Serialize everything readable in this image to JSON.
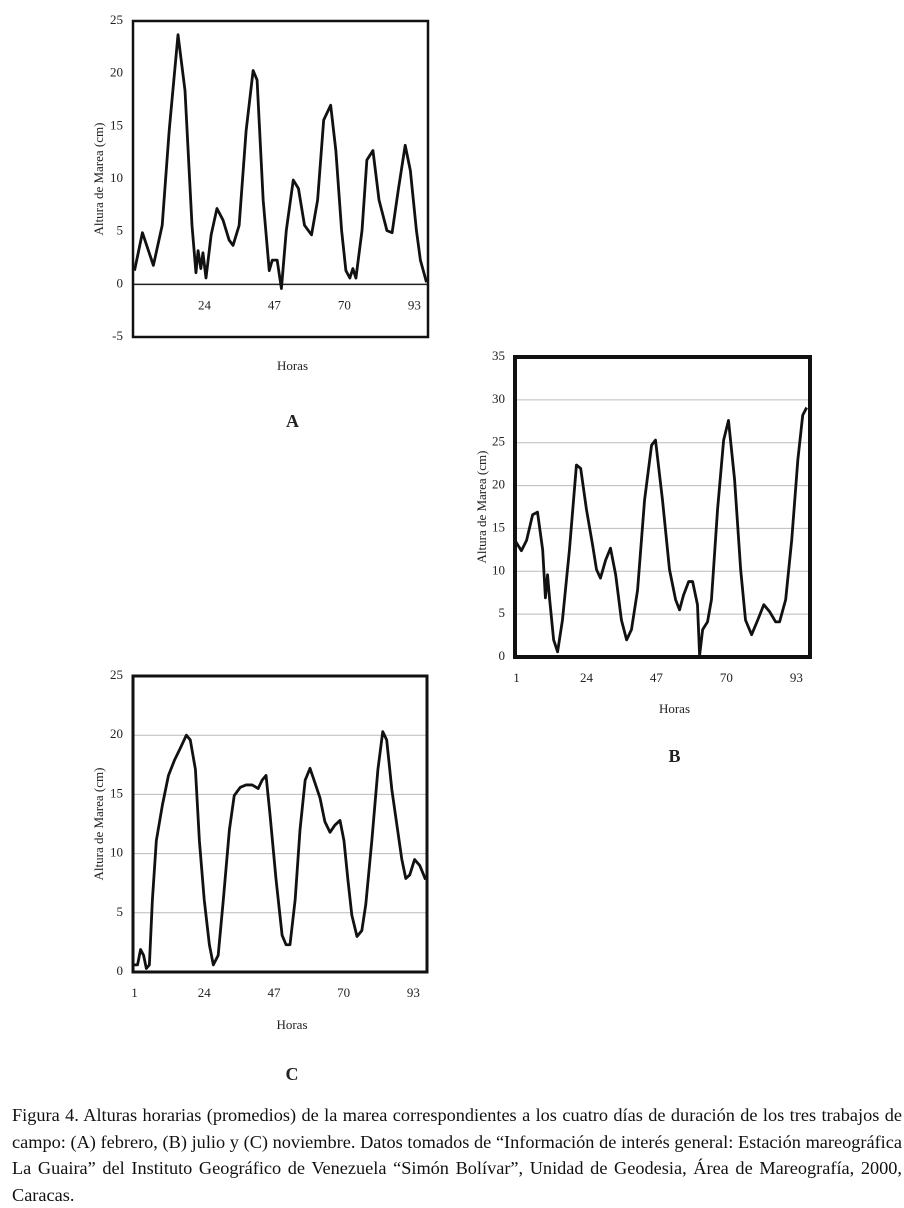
{
  "chart_data": [
    {
      "type": "line",
      "label": "A",
      "xlabel": "Horas",
      "ylabel": "Altura de Marea (cm)",
      "xlim": [
        0.5,
        97.5
      ],
      "ylim": [
        -5,
        25
      ],
      "yticks": [
        -5,
        0,
        5,
        10,
        15,
        20,
        25
      ],
      "xticks": [
        24,
        47,
        70,
        93
      ],
      "grid": false,
      "series": [
        {
          "color": "#111111",
          "x": [
            1,
            3.6,
            7.2,
            10.1,
            12.4,
            15.3,
            17.6,
            19.9,
            21.2,
            21.9,
            22.8,
            23.5,
            24.5,
            26.2,
            28.1,
            30.1,
            32.1,
            33.4,
            35.4,
            37.7,
            40,
            41.3,
            43.3,
            45.3,
            46.3,
            47.9,
            49.3,
            50.9,
            53.2,
            54.9,
            56.9,
            59.2,
            61.2,
            63.2,
            65.5,
            67.2,
            69.1,
            70.5,
            71.8,
            72.8,
            73.8,
            75.8,
            77.4,
            79.4,
            81.4,
            84,
            85.7,
            87.7,
            90,
            91.7,
            93.7,
            95,
            97
          ],
          "values": [
            1.3,
            4.9,
            1.8,
            5.6,
            14.6,
            23.7,
            18.4,
            5.6,
            1.1,
            3.2,
            1.5,
            3.0,
            0.6,
            4.7,
            7.2,
            6.1,
            4.2,
            3.7,
            5.6,
            14.6,
            20.3,
            19.4,
            8,
            1.3,
            2.3,
            2.3,
            -0.4,
            5.1,
            9.9,
            9.1,
            5.6,
            4.7,
            8,
            15.6,
            17,
            12.7,
            5.1,
            1.3,
            0.6,
            1.5,
            0.6,
            5.1,
            11.8,
            12.7,
            8,
            5.1,
            4.9,
            8.9,
            13.2,
            10.8,
            5.1,
            2.3,
            0.2
          ]
        }
      ]
    },
    {
      "type": "line",
      "label": "B",
      "xlabel": "Horas",
      "ylabel": "Altura de Marea (cm)",
      "xlim": [
        0.5,
        97.5
      ],
      "ylim": [
        0,
        35
      ],
      "yticks": [
        0,
        5,
        10,
        15,
        20,
        25,
        30,
        35
      ],
      "xticks": [
        1,
        24,
        47,
        70,
        93
      ],
      "grid": true,
      "series": [
        {
          "color": "#111111",
          "x": [
            0.5,
            2.6,
            4.3,
            6.3,
            7.9,
            9.6,
            10.5,
            11.2,
            11.9,
            13.2,
            14.5,
            16.1,
            18.4,
            20.7,
            22.1,
            24,
            26,
            27.3,
            28.6,
            30.3,
            31.9,
            33.6,
            35.5,
            37.2,
            38.8,
            40.8,
            43.1,
            45.4,
            46.7,
            49,
            51.3,
            53.3,
            54.6,
            55.9,
            57.6,
            58.9,
            60.5,
            61.2,
            62.2,
            63.8,
            65.1,
            67.1,
            69.1,
            70.7,
            72.7,
            74.7,
            76.3,
            78.3,
            80.3,
            82.3,
            84.2,
            86.2,
            87.5,
            89.5,
            91.5,
            93.5,
            95.1,
            96.4
          ],
          "values": [
            13.6,
            12.4,
            13.6,
            16.6,
            16.9,
            12.5,
            6.9,
            9.6,
            6.7,
            2,
            0.6,
            4.3,
            12.5,
            22.4,
            22,
            17.2,
            13.1,
            10.2,
            9.2,
            11.3,
            12.7,
            9.6,
            4.3,
            2,
            3.2,
            7.8,
            18.3,
            24.7,
            25.3,
            18.3,
            10.2,
            6.7,
            5.5,
            7.2,
            8.8,
            8.8,
            6.1,
            0.2,
            3.2,
            4.1,
            6.7,
            17.2,
            25.3,
            27.6,
            20.7,
            10.2,
            4.3,
            2.6,
            4.3,
            6.1,
            5.3,
            4.1,
            4.1,
            6.7,
            13.7,
            23,
            28.2,
            29.1
          ]
        }
      ]
    },
    {
      "type": "line",
      "label": "C",
      "xlabel": "Horas",
      "ylabel": "Altura de Marea (cm)",
      "xlim": [
        0.5,
        97.5
      ],
      "ylim": [
        0,
        25
      ],
      "yticks": [
        0,
        5,
        10,
        15,
        20,
        25
      ],
      "xticks": [
        1,
        24,
        47,
        70,
        93
      ],
      "grid": true,
      "series": [
        {
          "color": "#111111",
          "x": [
            1,
            2,
            3,
            4,
            4.9,
            5.9,
            6.9,
            8.2,
            10.2,
            12.2,
            14.2,
            16.1,
            18.1,
            19.4,
            21.1,
            22.4,
            24,
            25.7,
            27,
            28.6,
            30.3,
            32.3,
            33.9,
            35.9,
            37.8,
            39.8,
            41.8,
            43.1,
            44.4,
            45.7,
            47.7,
            49.7,
            51,
            52.3,
            54,
            55.6,
            57.3,
            58.9,
            60.5,
            62.2,
            63.8,
            65.5,
            67.1,
            68.8,
            70.1,
            71.4,
            72.7,
            74.4,
            76,
            77.3,
            79.3,
            81.3,
            82.9,
            84.2,
            85.9,
            87.8,
            89.2,
            90.5,
            91.8,
            93.4,
            95.1,
            96.4,
            97
          ],
          "values": [
            0.6,
            0.6,
            1.9,
            1.4,
            0.3,
            0.6,
            6.1,
            11.1,
            14.1,
            16.6,
            17.9,
            18.9,
            20,
            19.6,
            17.1,
            11.1,
            6.1,
            2.3,
            0.6,
            1.4,
            6.1,
            12,
            14.9,
            15.6,
            15.8,
            15.8,
            15.5,
            16.2,
            16.6,
            13.3,
            7.8,
            3.1,
            2.3,
            2.3,
            6.1,
            12,
            16.2,
            17.2,
            16,
            14.7,
            12.7,
            11.8,
            12.4,
            12.8,
            11.1,
            7.8,
            4.8,
            3,
            3.5,
            5.7,
            11.1,
            17.1,
            20.3,
            19.6,
            15.4,
            12,
            9.5,
            7.9,
            8.2,
            9.5,
            9,
            8.2,
            7.8
          ]
        }
      ]
    }
  ],
  "caption": "Figura 4. Alturas horarias (promedios) de la marea correspondientes a los cuatro días de duración de los tres trabajos de campo: (A) febrero, (B) julio y (C) noviembre. Datos tomados de “Información de interés general: Estación mareográfica La Guaira” del Instituto Geográfico de Venezuela “Simón Bolívar”, Unidad de Geodesia, Área de Mareografía, 2000, Caracas."
}
